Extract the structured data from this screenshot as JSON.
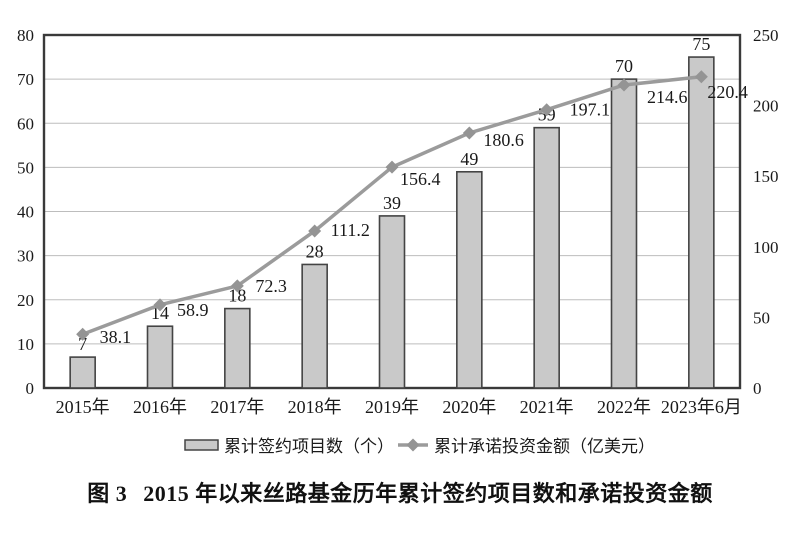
{
  "figure": {
    "caption_label": "图 3",
    "caption_title": "2015 年以来丝路基金历年累计签约项目数和承诺投资金额"
  },
  "chart_data": {
    "type": "combo",
    "title": "",
    "categories": [
      "2015年",
      "2016年",
      "2017年",
      "2018年",
      "2019年",
      "2020年",
      "2021年",
      "2022年",
      "2023年6月"
    ],
    "series": [
      {
        "name": "累计签约项目数（个）",
        "type": "bar",
        "axis": "left",
        "values": [
          7,
          14,
          18,
          28,
          39,
          49,
          59,
          70,
          75
        ]
      },
      {
        "name": "累计承诺投资金额（亿美元）",
        "type": "line",
        "axis": "right",
        "values": [
          38.1,
          58.9,
          72.3,
          111.2,
          156.4,
          180.6,
          197.1,
          214.6,
          220.4
        ]
      }
    ],
    "left_axis": {
      "min": 0,
      "max": 80,
      "ticks": [
        0,
        10,
        20,
        30,
        40,
        50,
        60,
        70,
        80
      ]
    },
    "right_axis": {
      "min": 0,
      "max": 250,
      "ticks": [
        0,
        50,
        100,
        150,
        200,
        250
      ]
    },
    "grid": true,
    "data_labels": true,
    "legend_position": "bottom",
    "colors": {
      "bar_fill": "#c9c9c9",
      "bar_stroke": "#444444",
      "line": "#9b9b9b",
      "marker": "#949494",
      "frame": "#3a3a3a",
      "grid": "#bdbdbd",
      "text": "#1a1a1a"
    }
  }
}
